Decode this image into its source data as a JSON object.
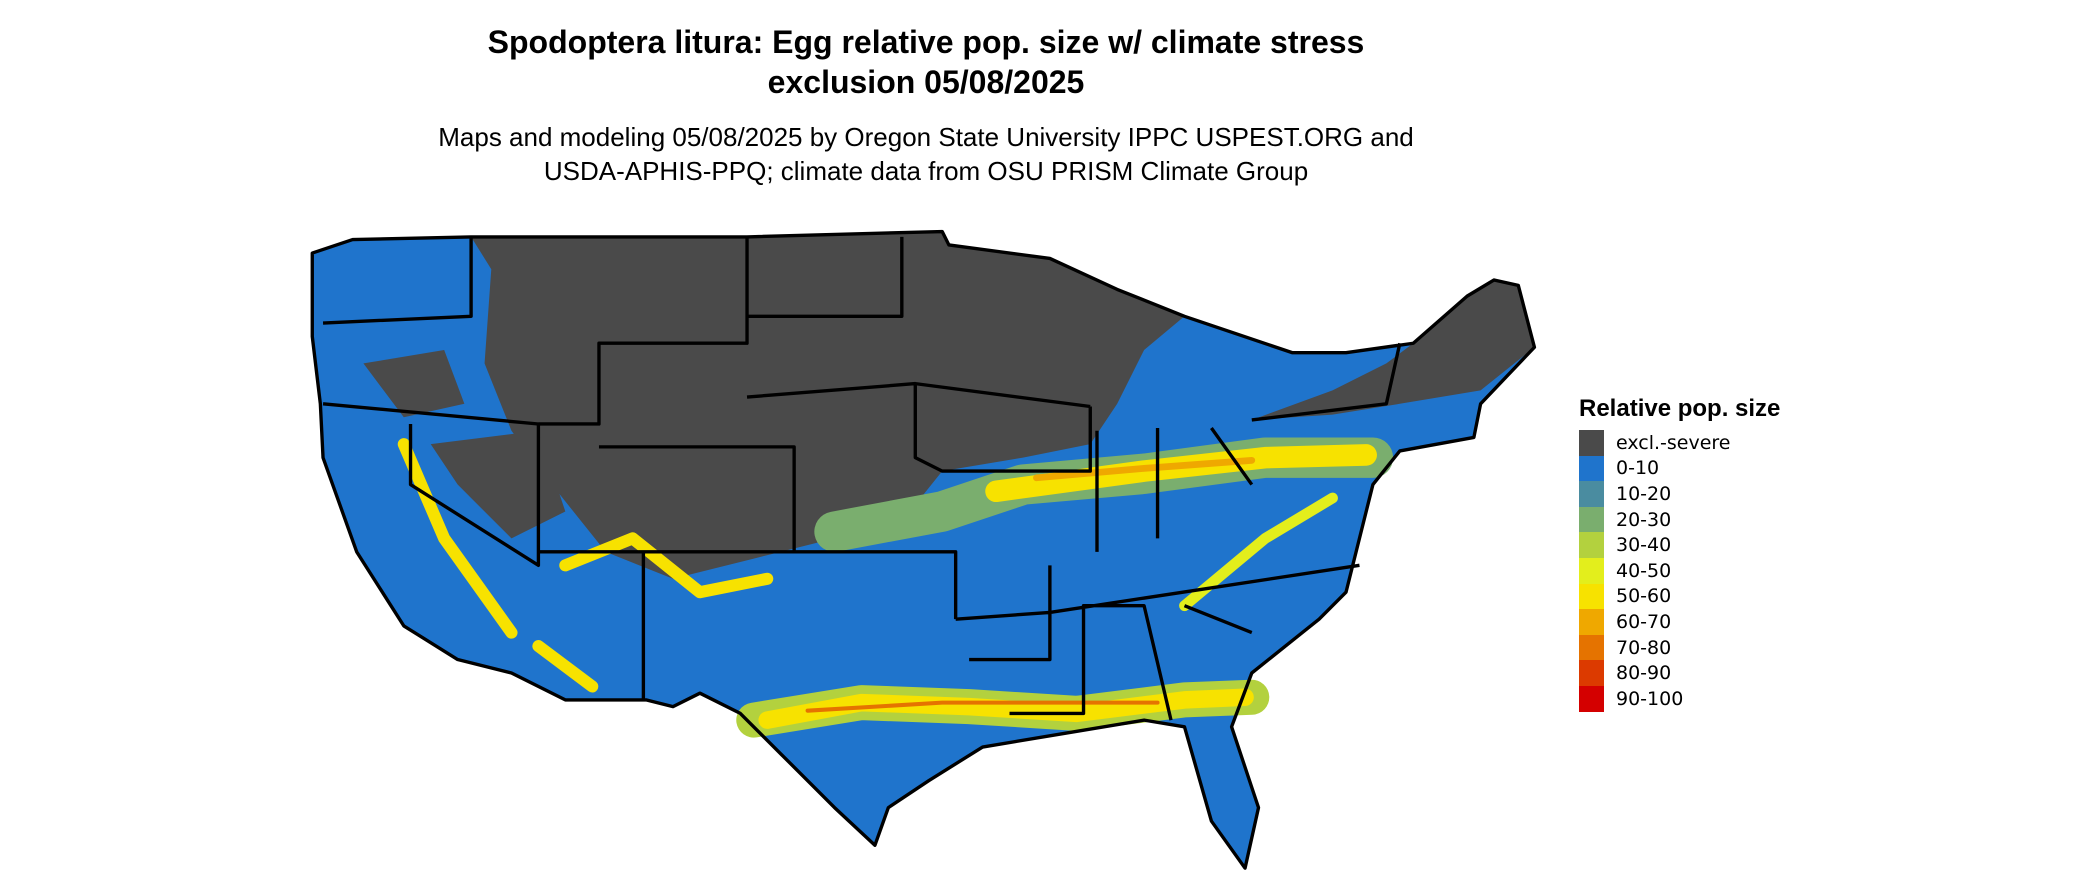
{
  "title": "Spodoptera litura: Egg relative pop. size w/ climate stress exclusion 05/08/2025",
  "subtitle": "Maps and modeling 05/08/2025 by Oregon State University IPPC USPEST.ORG and USDA-APHIS-PPQ; climate data from OSU PRISM Climate Group",
  "legend": {
    "title": "Relative pop. size",
    "items": [
      {
        "label": "excl.-severe",
        "color": "#4a4a4a"
      },
      {
        "label": "0-10",
        "color": "#1f74cc"
      },
      {
        "label": "10-20",
        "color": "#4a8ca0"
      },
      {
        "label": "20-30",
        "color": "#7aae6e"
      },
      {
        "label": "30-40",
        "color": "#b3d13e"
      },
      {
        "label": "40-50",
        "color": "#e3ee1c"
      },
      {
        "label": "50-60",
        "color": "#f7e200"
      },
      {
        "label": "60-70",
        "color": "#efa800"
      },
      {
        "label": "70-80",
        "color": "#e57300"
      },
      {
        "label": "80-90",
        "color": "#dc3a00"
      },
      {
        "label": "90-100",
        "color": "#d40000"
      }
    ]
  }
}
